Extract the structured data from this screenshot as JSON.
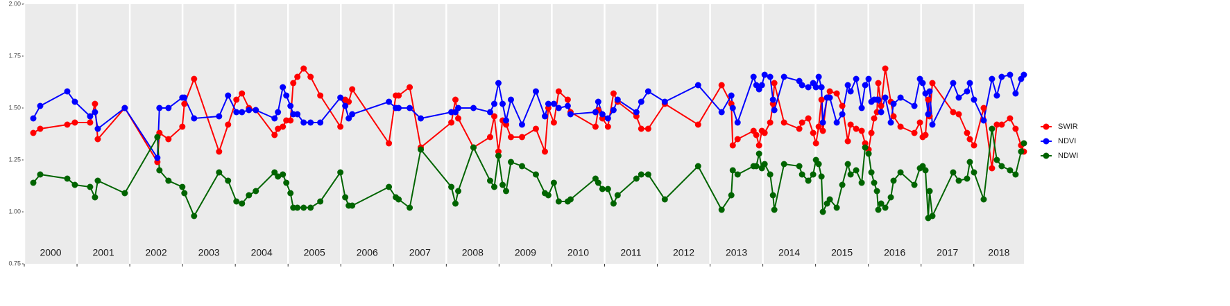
{
  "chart_data": {
    "type": "line",
    "x": [
      2000.171,
      2000.302,
      2000.815,
      2000.959,
      2001.248,
      2001.34,
      2001.393,
      2001.905,
      2002.523,
      2002.562,
      2002.733,
      2002.996,
      2003.035,
      2003.219,
      2003.693,
      2003.863,
      2004.021,
      2004.126,
      2004.258,
      2004.389,
      2004.744,
      2004.809,
      2004.901,
      2004.967,
      2005.046,
      2005.099,
      2005.177,
      2005.296,
      2005.427,
      2005.611,
      2005.992,
      2006.084,
      2006.15,
      2006.216,
      2006.912,
      2007.043,
      2007.096,
      2007.306,
      2007.516,
      2008.095,
      2008.173,
      2008.226,
      2008.515,
      2008.83,
      2008.909,
      2008.988,
      2009.067,
      2009.133,
      2009.225,
      2009.435,
      2009.698,
      2009.869,
      2009.934,
      2010.039,
      2010.131,
      2010.302,
      2010.355,
      2010.828,
      2010.88,
      2010.959,
      2011.064,
      2011.17,
      2011.248,
      2011.603,
      2011.695,
      2011.827,
      2012.142,
      2012.773,
      2013.219,
      2013.403,
      2013.43,
      2013.522,
      2013.824,
      2013.876,
      2013.929,
      2013.982,
      2014.034,
      2014.139,
      2014.192,
      2014.218,
      2014.402,
      2014.691,
      2014.744,
      2014.862,
      2014.954,
      2015.007,
      2015.059,
      2015.112,
      2015.138,
      2015.217,
      2015.269,
      2015.401,
      2015.506,
      2015.611,
      2015.664,
      2015.769,
      2015.874,
      2015.94,
      2016.005,
      2016.058,
      2016.11,
      2016.163,
      2016.189,
      2016.242,
      2016.321,
      2016.426,
      2016.478,
      2016.61,
      2016.873,
      2016.978,
      2017.03,
      2017.083,
      2017.135,
      2017.162,
      2017.214,
      2017.608,
      2017.714,
      2017.871,
      2017.924,
      2018.003,
      2018.187,
      2018.344,
      2018.436,
      2018.528,
      2018.686,
      2018.791,
      2018.896,
      2018.949
    ],
    "series": [
      {
        "name": "SWIR",
        "color": "#ff0000",
        "values": [
          1.38,
          1.4,
          1.42,
          1.43,
          1.43,
          1.52,
          1.35,
          1.5,
          1.24,
          1.38,
          1.35,
          1.41,
          1.52,
          1.64,
          1.29,
          1.42,
          1.54,
          1.57,
          1.5,
          1.49,
          1.37,
          1.4,
          1.41,
          1.44,
          1.44,
          1.62,
          1.65,
          1.69,
          1.65,
          1.56,
          1.41,
          1.54,
          1.53,
          1.59,
          1.33,
          1.56,
          1.56,
          1.6,
          1.31,
          1.43,
          1.54,
          1.45,
          1.31,
          1.36,
          1.46,
          1.29,
          1.44,
          1.42,
          1.36,
          1.36,
          1.4,
          1.29,
          1.5,
          1.43,
          1.58,
          1.54,
          1.48,
          1.41,
          1.49,
          1.45,
          1.41,
          1.57,
          1.53,
          1.46,
          1.4,
          1.4,
          1.52,
          1.42,
          1.61,
          1.52,
          1.32,
          1.35,
          1.39,
          1.37,
          1.32,
          1.39,
          1.38,
          1.43,
          1.52,
          1.62,
          1.43,
          1.4,
          1.43,
          1.45,
          1.38,
          1.33,
          1.41,
          1.54,
          1.39,
          1.55,
          1.58,
          1.57,
          1.51,
          1.34,
          1.42,
          1.4,
          1.39,
          1.33,
          1.3,
          1.38,
          1.45,
          1.48,
          1.62,
          1.51,
          1.69,
          1.53,
          1.46,
          1.41,
          1.38,
          1.43,
          1.36,
          1.37,
          1.54,
          1.46,
          1.62,
          1.48,
          1.47,
          1.38,
          1.35,
          1.32,
          1.5,
          1.21,
          1.42,
          1.42,
          1.45,
          1.4,
          1.32,
          1.29
        ]
      },
      {
        "name": "NDVI",
        "color": "#0000ff",
        "values": [
          1.45,
          1.51,
          1.58,
          1.53,
          1.46,
          1.48,
          1.4,
          1.5,
          1.26,
          1.5,
          1.5,
          1.55,
          1.55,
          1.45,
          1.46,
          1.56,
          1.48,
          1.48,
          1.49,
          1.49,
          1.45,
          1.48,
          1.6,
          1.56,
          1.51,
          1.47,
          1.47,
          1.43,
          1.43,
          1.43,
          1.55,
          1.51,
          1.45,
          1.47,
          1.53,
          1.5,
          1.5,
          1.5,
          1.45,
          1.48,
          1.48,
          1.5,
          1.5,
          1.48,
          1.52,
          1.62,
          1.52,
          1.44,
          1.54,
          1.42,
          1.58,
          1.46,
          1.52,
          1.52,
          1.5,
          1.51,
          1.47,
          1.48,
          1.53,
          1.47,
          1.45,
          1.49,
          1.54,
          1.48,
          1.53,
          1.58,
          1.53,
          1.61,
          1.48,
          1.56,
          1.5,
          1.43,
          1.65,
          1.61,
          1.59,
          1.61,
          1.66,
          1.65,
          1.54,
          1.49,
          1.65,
          1.63,
          1.61,
          1.6,
          1.62,
          1.6,
          1.65,
          1.6,
          1.43,
          1.55,
          1.55,
          1.43,
          1.47,
          1.61,
          1.58,
          1.64,
          1.5,
          1.61,
          1.64,
          1.53,
          1.54,
          1.54,
          1.54,
          1.48,
          1.55,
          1.43,
          1.52,
          1.55,
          1.51,
          1.64,
          1.62,
          1.57,
          1.47,
          1.58,
          1.42,
          1.62,
          1.55,
          1.58,
          1.62,
          1.54,
          1.44,
          1.64,
          1.56,
          1.65,
          1.66,
          1.57,
          1.64,
          1.66
        ]
      },
      {
        "name": "NDWI",
        "color": "#006400",
        "values": [
          1.14,
          1.18,
          1.16,
          1.13,
          1.12,
          1.07,
          1.15,
          1.09,
          1.36,
          1.2,
          1.15,
          1.12,
          1.09,
          0.98,
          1.19,
          1.15,
          1.05,
          1.04,
          1.08,
          1.1,
          1.19,
          1.17,
          1.18,
          1.14,
          1.09,
          1.02,
          1.02,
          1.02,
          1.02,
          1.05,
          1.19,
          1.07,
          1.03,
          1.03,
          1.12,
          1.07,
          1.06,
          1.02,
          1.3,
          1.12,
          1.04,
          1.1,
          1.31,
          1.15,
          1.12,
          1.27,
          1.13,
          1.1,
          1.24,
          1.22,
          1.18,
          1.09,
          1.08,
          1.14,
          1.05,
          1.05,
          1.06,
          1.16,
          1.14,
          1.11,
          1.11,
          1.04,
          1.08,
          1.16,
          1.18,
          1.18,
          1.06,
          1.22,
          1.01,
          1.08,
          1.2,
          1.18,
          1.22,
          1.22,
          1.28,
          1.21,
          1.23,
          1.18,
          1.08,
          1.01,
          1.23,
          1.22,
          1.18,
          1.15,
          1.18,
          1.25,
          1.23,
          1.17,
          1.0,
          1.04,
          1.06,
          1.02,
          1.13,
          1.23,
          1.18,
          1.2,
          1.14,
          1.31,
          1.28,
          1.19,
          1.14,
          1.1,
          1.01,
          1.04,
          1.02,
          1.07,
          1.15,
          1.19,
          1.13,
          1.21,
          1.22,
          1.2,
          0.97,
          1.1,
          0.98,
          1.19,
          1.15,
          1.16,
          1.24,
          1.19,
          1.06,
          1.4,
          1.25,
          1.22,
          1.2,
          1.18,
          1.29,
          1.33
        ]
      }
    ],
    "xlim": [
      2000,
      2018.95
    ],
    "xticks": [
      2000,
      2001,
      2002,
      2003,
      2004,
      2005,
      2006,
      2007,
      2008,
      2009,
      2010,
      2011,
      2012,
      2013,
      2014,
      2015,
      2016,
      2017,
      2018
    ],
    "ylim": [
      0.75,
      2.0
    ],
    "yticks": [
      0.75,
      {
        "value": 1,
        "label": "1.00"
      },
      1.25,
      {
        "value": 1.5,
        "label": "1.50"
      },
      1.75,
      {
        "value": 2,
        "label": "2.00"
      }
    ],
    "grid": "x",
    "legend": "right"
  }
}
